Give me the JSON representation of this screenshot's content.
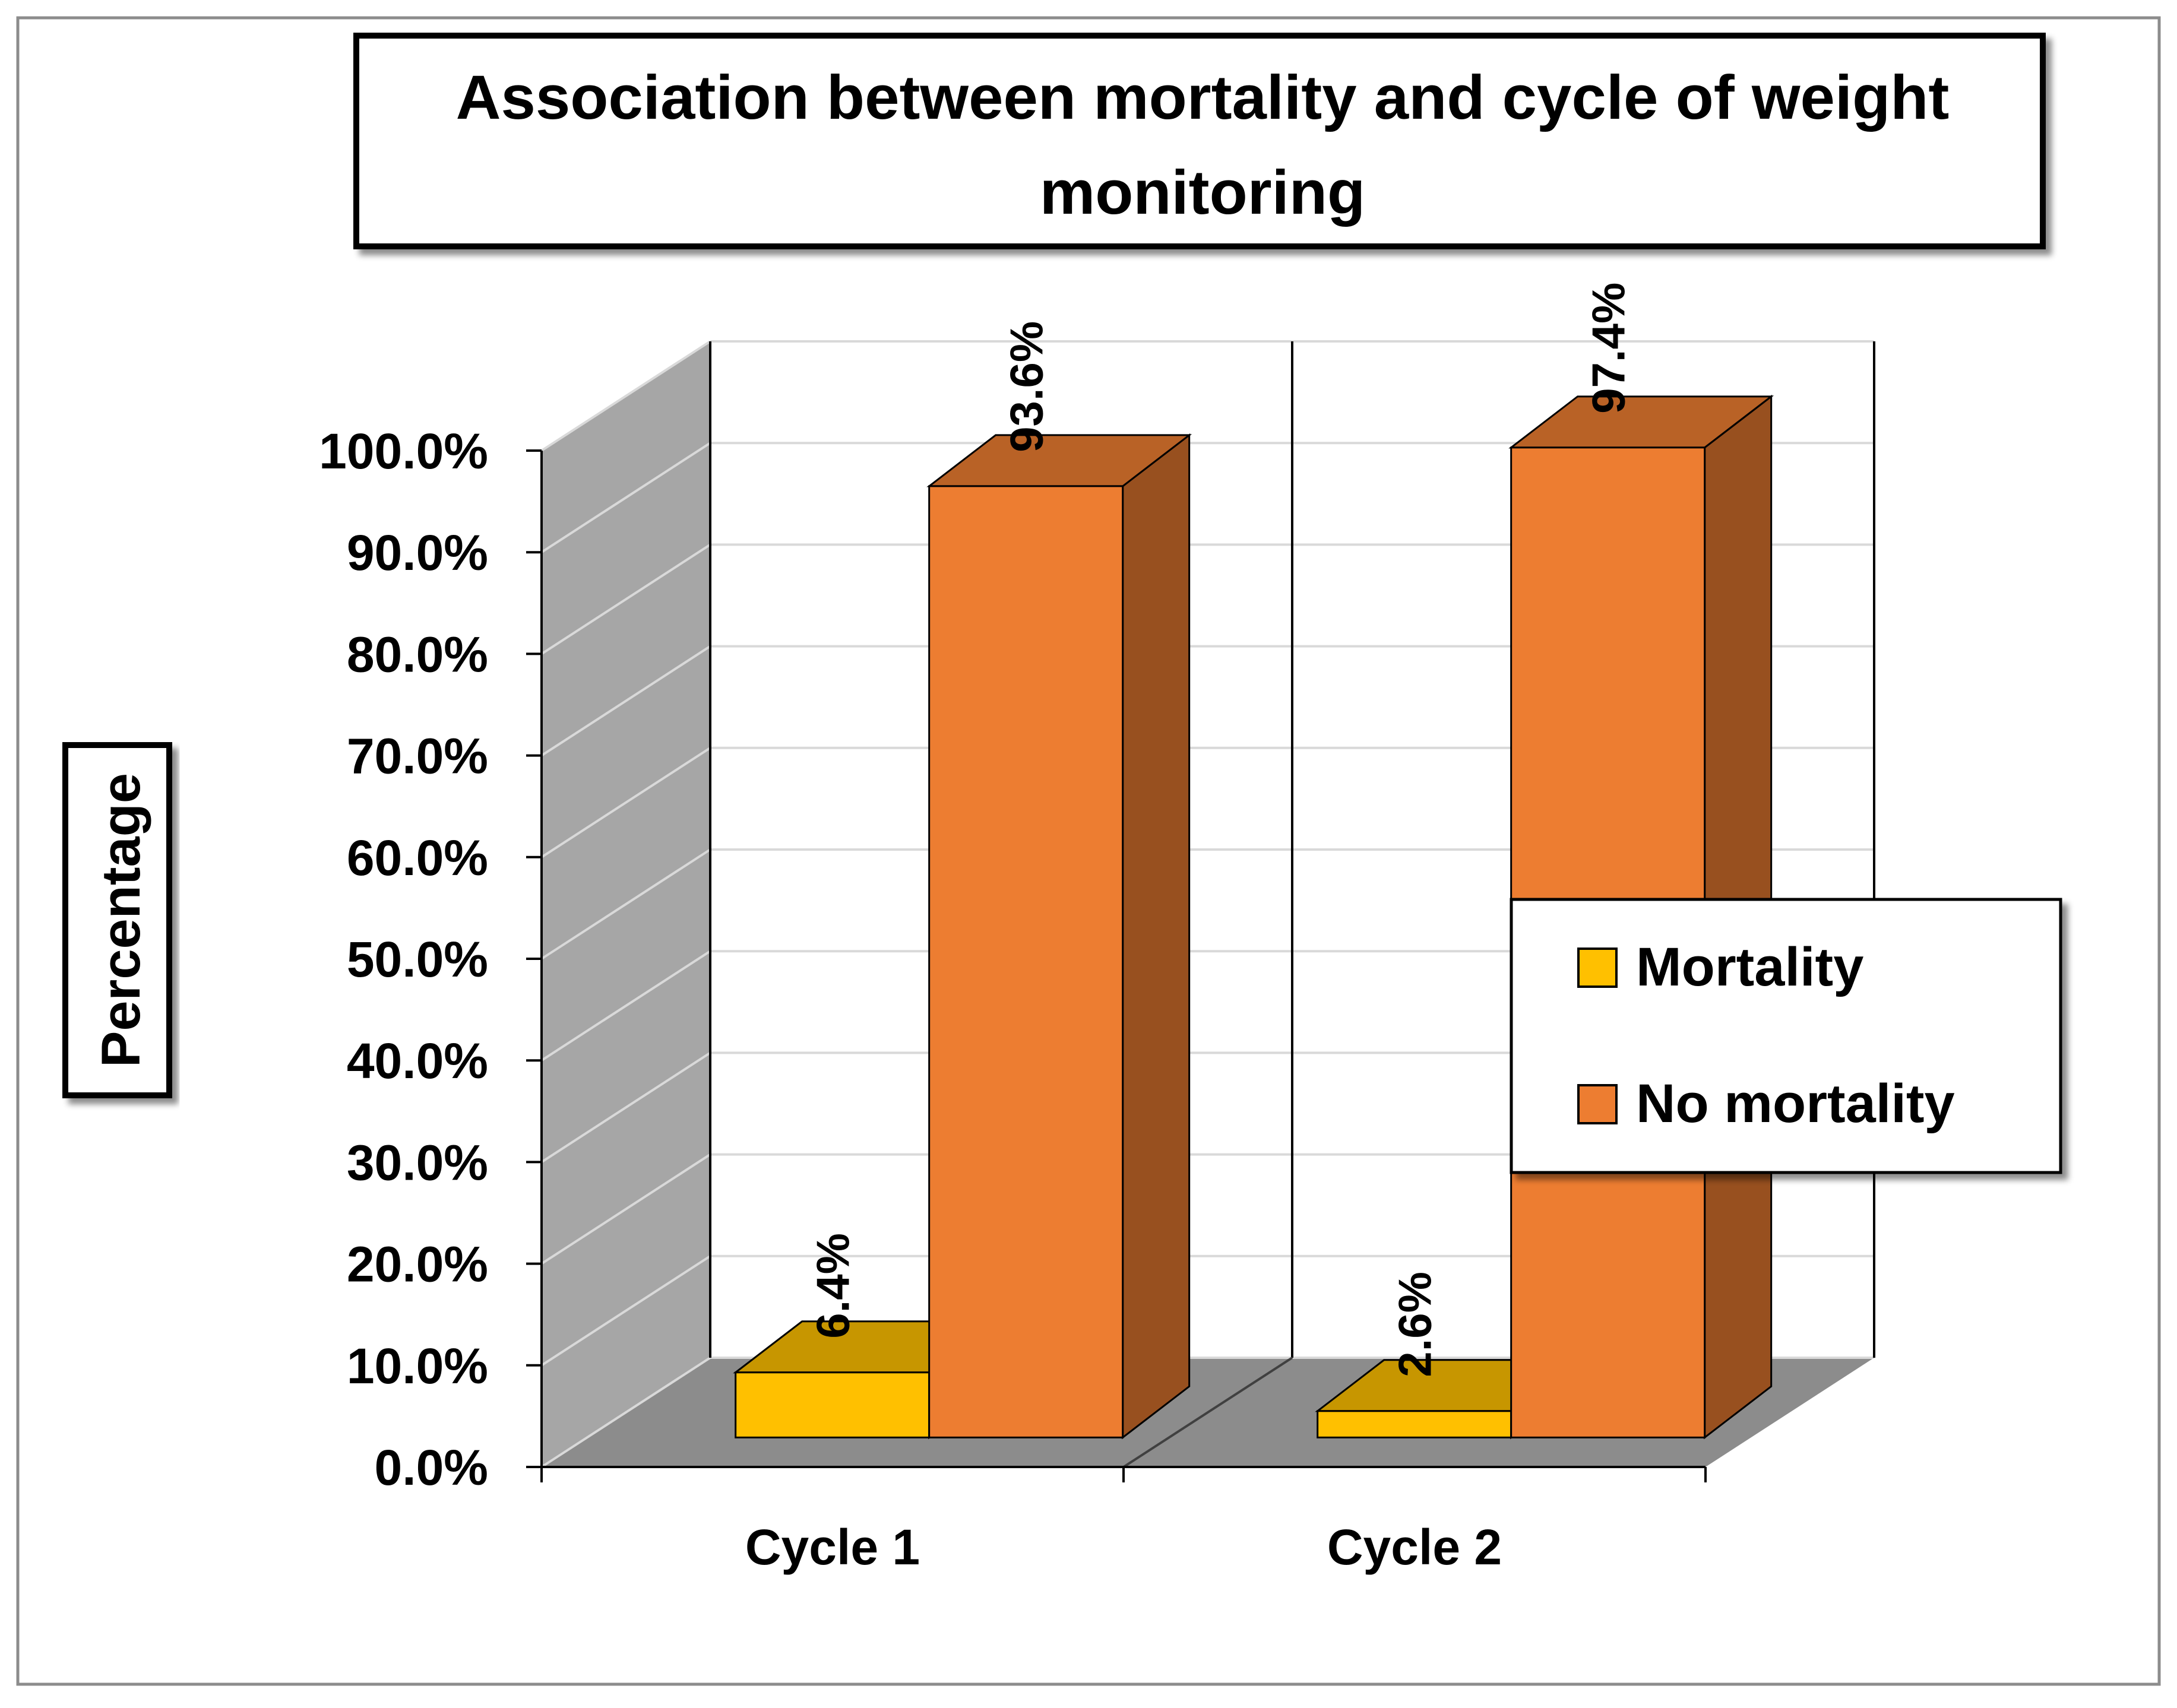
{
  "chart_data": {
    "type": "bar",
    "title": "Association between mortality and cycle of weight monitoring",
    "title_lines": [
      "Association between mortality and cycle of weight",
      "monitoring"
    ],
    "xlabel": "",
    "ylabel": "Percentage",
    "categories": [
      "Cycle 1",
      "Cycle 2"
    ],
    "series": [
      {
        "name": "Mortality",
        "values": [
          6.4,
          2.6
        ],
        "labels": [
          "6.4%",
          "2.6%"
        ],
        "color": "#FFC000"
      },
      {
        "name": "No mortality",
        "values": [
          93.6,
          97.4
        ],
        "labels": [
          "93.6%",
          "97.4%"
        ],
        "color": "#ED7D31"
      }
    ],
    "ylim": [
      0,
      100
    ],
    "yticks": [
      "0.0%",
      "10.0%",
      "20.0%",
      "30.0%",
      "40.0%",
      "50.0%",
      "60.0%",
      "70.0%",
      "80.0%",
      "90.0%",
      "100.0%"
    ],
    "grid": true,
    "legend_position": "right"
  }
}
